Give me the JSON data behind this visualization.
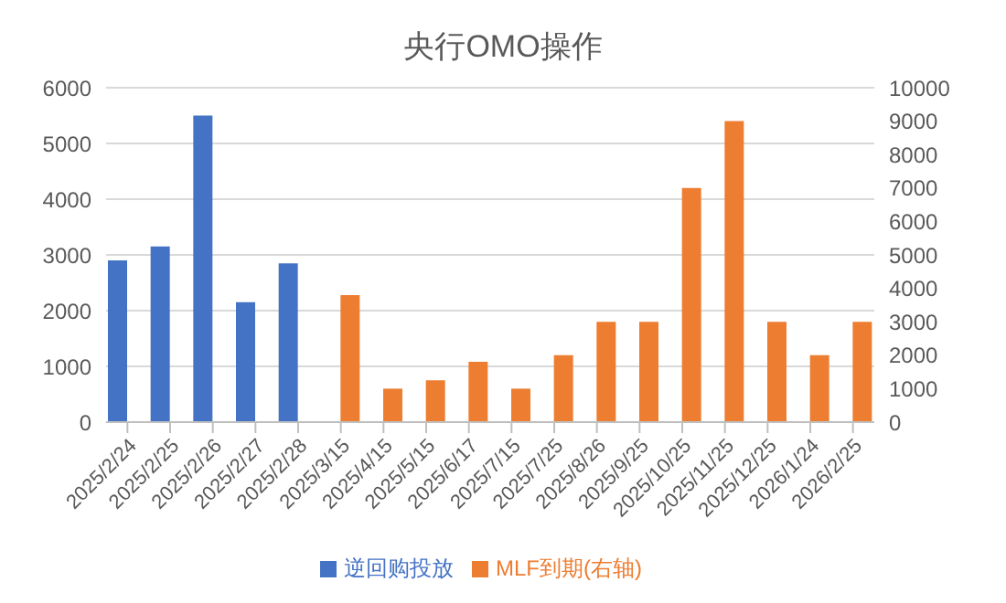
{
  "chart_data": {
    "type": "bar",
    "title": "央行OMO操作",
    "categories": [
      "2025/2/24",
      "2025/2/25",
      "2025/2/26",
      "2025/2/27",
      "2025/2/28",
      "2025/3/15",
      "2025/4/15",
      "2025/5/15",
      "2025/6/17",
      "2025/7/15",
      "2025/7/25",
      "2025/8/26",
      "2025/9/25",
      "2025/10/25",
      "2025/11/25",
      "2025/12/25",
      "2026/1/24",
      "2026/2/25"
    ],
    "series": [
      {
        "name": "逆回购投放",
        "color": "#4472c4",
        "values": [
          2900,
          3150,
          5500,
          2150,
          2850,
          null,
          null,
          null,
          null,
          null,
          null,
          null,
          null,
          null,
          null,
          null,
          null,
          null
        ]
      },
      {
        "name": "MLF到期(右轴)",
        "color": "#ed7d31",
        "axis": "y2",
        "values": [
          null,
          null,
          null,
          null,
          null,
          3800,
          1000,
          1250,
          1800,
          1000,
          2000,
          3000,
          3000,
          7000,
          9000,
          3000,
          2000,
          3000
        ]
      }
    ],
    "ylim": [
      0,
      6000
    ],
    "yticks": [
      0,
      1000,
      2000,
      3000,
      4000,
      5000,
      6000
    ],
    "y2lim": [
      0,
      10000
    ],
    "y2ticks": [
      0,
      1000,
      2000,
      3000,
      4000,
      5000,
      6000,
      7000,
      8000,
      9000,
      10000
    ],
    "grid": "y",
    "legend": "bottom"
  }
}
